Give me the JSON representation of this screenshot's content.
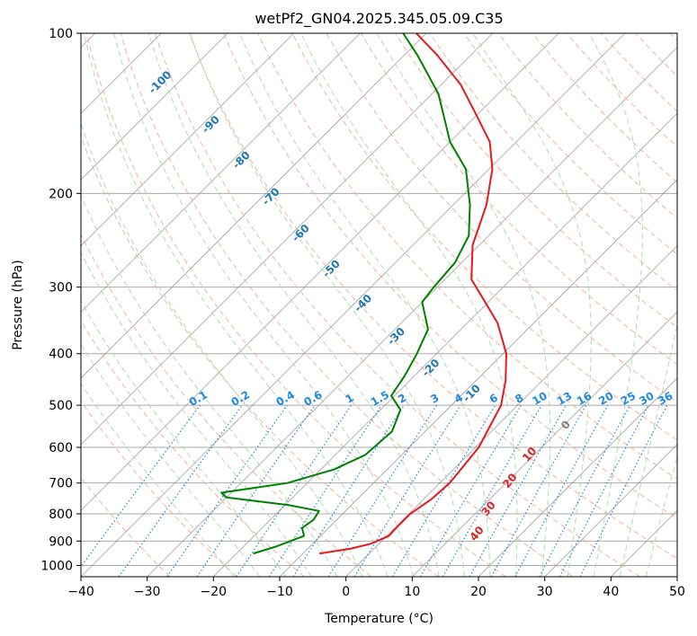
{
  "chart_data": {
    "type": "line",
    "title": "wetPf2_GN04.2025.345.05.09.C35",
    "xlabel": "Temperature (°C)",
    "ylabel": "Pressure (hPa)",
    "xlim": [
      -40,
      50
    ],
    "ylim": [
      1050,
      100
    ],
    "yscale": "log",
    "skew": true,
    "grid": true,
    "x_ticks": [
      -40,
      -30,
      -20,
      -10,
      0,
      10,
      20,
      30,
      40,
      50
    ],
    "x_tick_labels": [
      "−40",
      "−30",
      "−20",
      "−10",
      "0",
      "10",
      "20",
      "30",
      "40",
      "50"
    ],
    "y_ticks": [
      100,
      200,
      300,
      400,
      500,
      600,
      700,
      800,
      900,
      1000
    ],
    "y_tick_labels": [
      "100",
      "200",
      "300",
      "400",
      "500",
      "600",
      "700",
      "800",
      "900",
      "1000"
    ],
    "colors": {
      "temperature": "#e41a1c",
      "dewpoint": "#008000",
      "dry_adiabat": "#f4a582",
      "moist_adiabat": "#a6d8a6",
      "mixing_ratio": "#1e88e5",
      "isotherm": "#888888",
      "isobar": "#aaaaaa"
    },
    "series": [
      {
        "key": "temperature",
        "points": [
          [
            950,
            -7.5
          ],
          [
            930,
            -3.5
          ],
          [
            910,
            -1.2
          ],
          [
            880,
            0.3
          ],
          [
            840,
            0.2
          ],
          [
            800,
            0.2
          ],
          [
            750,
            1.2
          ],
          [
            700,
            1.5
          ],
          [
            600,
            0.5
          ],
          [
            500,
            -2.5
          ],
          [
            450,
            -5.5
          ],
          [
            400,
            -9.5
          ],
          [
            350,
            -15.5
          ],
          [
            320,
            -20.5
          ],
          [
            290,
            -26
          ],
          [
            250,
            -31
          ],
          [
            210,
            -35
          ],
          [
            180,
            -39.5
          ],
          [
            160,
            -44
          ],
          [
            140,
            -51
          ],
          [
            125,
            -57
          ],
          [
            110,
            -65
          ],
          [
            100,
            -71.5
          ]
        ]
      },
      {
        "key": "dewpoint",
        "points": [
          [
            950,
            -17.5
          ],
          [
            920,
            -15
          ],
          [
            880,
            -12.5
          ],
          [
            850,
            -14
          ],
          [
            820,
            -13.5
          ],
          [
            790,
            -14
          ],
          [
            770,
            -19.5
          ],
          [
            745,
            -30
          ],
          [
            730,
            -31.5
          ],
          [
            700,
            -23
          ],
          [
            660,
            -18
          ],
          [
            620,
            -15.5
          ],
          [
            560,
            -15
          ],
          [
            510,
            -17
          ],
          [
            480,
            -20.5
          ],
          [
            440,
            -21.5
          ],
          [
            400,
            -23
          ],
          [
            360,
            -25
          ],
          [
            320,
            -30
          ],
          [
            300,
            -30.5
          ],
          [
            270,
            -31
          ],
          [
            240,
            -33
          ],
          [
            210,
            -37.5
          ],
          [
            180,
            -43.5
          ],
          [
            160,
            -50
          ],
          [
            130,
            -59
          ],
          [
            110,
            -68
          ],
          [
            100,
            -73.5
          ]
        ]
      }
    ],
    "dry_adiabat_labels": [
      "-100",
      "-90",
      "-80",
      "-70",
      "-60",
      "-50",
      "-40",
      "-30",
      "-20",
      "-10"
    ],
    "moist_adiabat_labels": [
      "0",
      "10",
      "20",
      "30",
      "40"
    ],
    "mixing_ratio_labels": [
      "0.1",
      "0.2",
      "0.4",
      "0.6",
      "1",
      "1.5",
      "2",
      "3",
      "4",
      "6",
      "8",
      "10",
      "13",
      "16",
      "20",
      "25",
      "30",
      "36"
    ]
  }
}
